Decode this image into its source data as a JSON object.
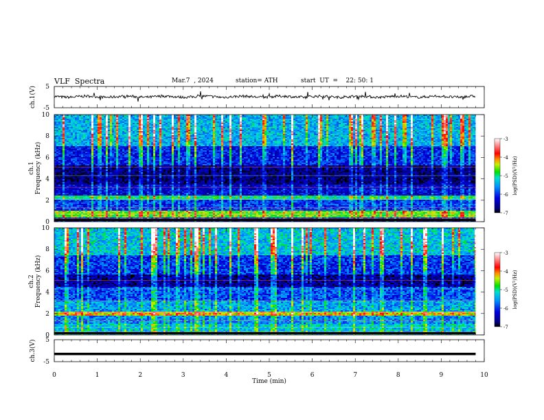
{
  "header": {
    "title": "VLF  Spectra",
    "date": "Mar.7  , 2024",
    "station": "station= ATH",
    "start": "start  UT  =    22: 50: 1"
  },
  "chart_data": [
    {
      "type": "line",
      "ylabel": "ch.1(V)",
      "ylim": [
        -5,
        5
      ],
      "ytick_labels": [
        "5",
        "-5"
      ],
      "description_values": "noisy waveform around 0 V",
      "series": [
        {
          "color": "#000000",
          "baseline": 0.2,
          "noise_amplitude": 0.6
        }
      ]
    },
    {
      "type": "heatmap",
      "channel_label": "ch.1",
      "ylabel": "Frequency  (kHz)",
      "ylim": [
        0,
        10
      ],
      "ytick_labels": [
        "0",
        "2",
        "4",
        "6",
        "8",
        "10"
      ],
      "colorbar": {
        "label": "log(PSD)(V²/Hz)",
        "range": [
          -7,
          -3
        ],
        "tick_labels": [
          "-3",
          "-4",
          "-5",
          "-6",
          "-7"
        ]
      },
      "bands": [
        {
          "from_khz": 0.0,
          "to_khz": 0.4,
          "level": -6.2
        },
        {
          "from_khz": 0.4,
          "to_khz": 1.0,
          "level": -4.6
        },
        {
          "from_khz": 1.0,
          "to_khz": 2.0,
          "level": -6.0
        },
        {
          "from_khz": 2.0,
          "to_khz": 2.4,
          "level": -5.0
        },
        {
          "from_khz": 2.4,
          "to_khz": 3.5,
          "level": -6.3
        },
        {
          "from_khz": 3.5,
          "to_khz": 5.2,
          "level": -6.7
        },
        {
          "from_khz": 5.2,
          "to_khz": 7.0,
          "level": -6.1
        },
        {
          "from_khz": 7.0,
          "to_khz": 10.0,
          "level": -5.4
        }
      ]
    },
    {
      "type": "heatmap",
      "channel_label": "ch.2",
      "ylabel": "Frequency  (kHz)",
      "ylim": [
        0,
        10
      ],
      "ytick_labels": [
        "0",
        "2",
        "4",
        "6",
        "8",
        "10"
      ],
      "colorbar": {
        "label": "log(PSD)(V²/Hz)",
        "range": [
          -7,
          -3
        ],
        "tick_labels": [
          "-3",
          "-4",
          "-5",
          "-6",
          "-7"
        ]
      },
      "bands": [
        {
          "from_khz": 0.0,
          "to_khz": 1.0,
          "level": -5.3
        },
        {
          "from_khz": 1.0,
          "to_khz": 1.8,
          "level": -5.6
        },
        {
          "from_khz": 1.8,
          "to_khz": 2.2,
          "level": -4.3
        },
        {
          "from_khz": 2.2,
          "to_khz": 3.2,
          "level": -5.5
        },
        {
          "from_khz": 3.2,
          "to_khz": 4.5,
          "level": -5.9
        },
        {
          "from_khz": 4.5,
          "to_khz": 5.6,
          "level": -6.6
        },
        {
          "from_khz": 5.6,
          "to_khz": 7.5,
          "level": -6.0
        },
        {
          "from_khz": 7.5,
          "to_khz": 10.0,
          "level": -5.3
        }
      ]
    },
    {
      "type": "line",
      "ylabel": "ch.3(V)",
      "ylim": [
        -5,
        5
      ],
      "ytick_labels": [
        "5",
        "-5"
      ],
      "series": [
        {
          "color": "#000000",
          "value": -1.5
        }
      ]
    }
  ],
  "x_axis": {
    "xlabel": "Time  (min)",
    "xlim": [
      0,
      10
    ],
    "tick_labels": [
      "0",
      "1",
      "2",
      "3",
      "4",
      "5",
      "6",
      "7",
      "8",
      "9",
      "10"
    ],
    "data_end": 9.8
  }
}
